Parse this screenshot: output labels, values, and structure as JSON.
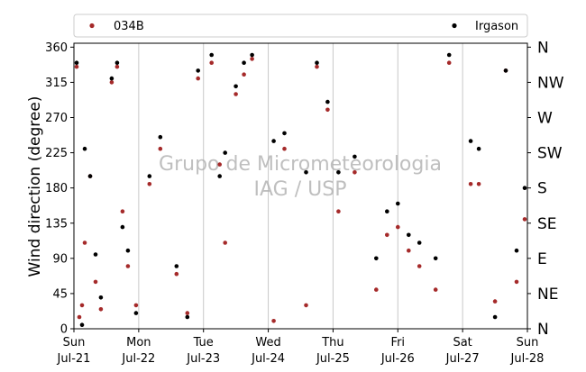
{
  "chart_data": {
    "type": "scatter",
    "ylabel": "Wind direction (degree)",
    "ylim": [
      0,
      365
    ],
    "yticks": [
      0,
      45,
      90,
      135,
      180,
      225,
      270,
      315,
      360
    ],
    "compass_ticks": [
      {
        "deg": 0,
        "label": "N"
      },
      {
        "deg": 45,
        "label": "NE"
      },
      {
        "deg": 90,
        "label": "E"
      },
      {
        "deg": 135,
        "label": "SE"
      },
      {
        "deg": 180,
        "label": "S"
      },
      {
        "deg": 225,
        "label": "SW"
      },
      {
        "deg": 270,
        "label": "W"
      },
      {
        "deg": 315,
        "label": "NW"
      },
      {
        "deg": 360,
        "label": "N"
      }
    ],
    "xlim": [
      "2019-07-21 00:00",
      "2019-07-28 00:00"
    ],
    "xticks": [
      {
        "day": "Sun",
        "date": "Jul-21"
      },
      {
        "day": "Mon",
        "date": "Jul-22"
      },
      {
        "day": "Tue",
        "date": "Jul-23"
      },
      {
        "day": "Wed",
        "date": "Jul-24"
      },
      {
        "day": "Thu",
        "date": "Jul-25"
      },
      {
        "day": "Fri",
        "date": "Jul-26"
      },
      {
        "day": "Sat",
        "date": "Jul-27"
      },
      {
        "day": "Sun",
        "date": "Jul-28"
      }
    ],
    "grid": "x",
    "legend": "top",
    "watermark": [
      "Grupo de Micrometeorologia",
      "IAG / USP"
    ],
    "series": [
      {
        "name": "034B",
        "color": "#a52a2a",
        "points": [
          [
            "2019-07-21 01:00",
            335
          ],
          [
            "2019-07-21 02:00",
            15
          ],
          [
            "2019-07-21 03:00",
            30
          ],
          [
            "2019-07-21 04:00",
            110
          ],
          [
            "2019-07-21 06:00",
            195
          ],
          [
            "2019-07-21 08:00",
            60
          ],
          [
            "2019-07-21 10:00",
            25
          ],
          [
            "2019-07-21 14:00",
            315
          ],
          [
            "2019-07-21 16:00",
            335
          ],
          [
            "2019-07-21 18:00",
            150
          ],
          [
            "2019-07-21 20:00",
            80
          ],
          [
            "2019-07-21 23:00",
            30
          ],
          [
            "2019-07-22 04:00",
            185
          ],
          [
            "2019-07-22 08:00",
            230
          ],
          [
            "2019-07-22 14:00",
            70
          ],
          [
            "2019-07-22 18:00",
            20
          ],
          [
            "2019-07-22 22:00",
            320
          ],
          [
            "2019-07-23 03:00",
            340
          ],
          [
            "2019-07-23 06:00",
            210
          ],
          [
            "2019-07-23 08:00",
            110
          ],
          [
            "2019-07-23 12:00",
            300
          ],
          [
            "2019-07-23 15:00",
            325
          ],
          [
            "2019-07-23 18:00",
            345
          ],
          [
            "2019-07-24 02:00",
            10
          ],
          [
            "2019-07-24 06:00",
            230
          ],
          [
            "2019-07-24 14:00",
            30
          ],
          [
            "2019-07-24 18:00",
            335
          ],
          [
            "2019-07-24 22:00",
            280
          ],
          [
            "2019-07-25 02:00",
            150
          ],
          [
            "2019-07-25 08:00",
            200
          ],
          [
            "2019-07-25 16:00",
            50
          ],
          [
            "2019-07-25 20:00",
            120
          ],
          [
            "2019-07-26 00:00",
            130
          ],
          [
            "2019-07-26 04:00",
            100
          ],
          [
            "2019-07-26 08:00",
            80
          ],
          [
            "2019-07-26 14:00",
            50
          ],
          [
            "2019-07-26 19:00",
            340
          ],
          [
            "2019-07-27 03:00",
            185
          ],
          [
            "2019-07-27 06:00",
            185
          ],
          [
            "2019-07-27 12:00",
            35
          ],
          [
            "2019-07-27 16:00",
            330
          ],
          [
            "2019-07-27 20:00",
            60
          ],
          [
            "2019-07-27 23:00",
            140
          ]
        ]
      },
      {
        "name": "Irgason",
        "color": "#000000",
        "points": [
          [
            "2019-07-21 01:00",
            340
          ],
          [
            "2019-07-21 03:00",
            5
          ],
          [
            "2019-07-21 04:00",
            230
          ],
          [
            "2019-07-21 06:00",
            195
          ],
          [
            "2019-07-21 08:00",
            95
          ],
          [
            "2019-07-21 10:00",
            40
          ],
          [
            "2019-07-21 14:00",
            320
          ],
          [
            "2019-07-21 16:00",
            340
          ],
          [
            "2019-07-21 18:00",
            130
          ],
          [
            "2019-07-21 20:00",
            100
          ],
          [
            "2019-07-21 23:00",
            20
          ],
          [
            "2019-07-22 04:00",
            195
          ],
          [
            "2019-07-22 08:00",
            245
          ],
          [
            "2019-07-22 14:00",
            80
          ],
          [
            "2019-07-22 18:00",
            15
          ],
          [
            "2019-07-22 22:00",
            330
          ],
          [
            "2019-07-23 03:00",
            350
          ],
          [
            "2019-07-23 06:00",
            195
          ],
          [
            "2019-07-23 08:00",
            225
          ],
          [
            "2019-07-23 12:00",
            310
          ],
          [
            "2019-07-23 15:00",
            340
          ],
          [
            "2019-07-23 18:00",
            350
          ],
          [
            "2019-07-24 02:00",
            240
          ],
          [
            "2019-07-24 06:00",
            250
          ],
          [
            "2019-07-24 14:00",
            200
          ],
          [
            "2019-07-24 18:00",
            340
          ],
          [
            "2019-07-24 22:00",
            290
          ],
          [
            "2019-07-25 02:00",
            200
          ],
          [
            "2019-07-25 08:00",
            220
          ],
          [
            "2019-07-25 16:00",
            90
          ],
          [
            "2019-07-25 20:00",
            150
          ],
          [
            "2019-07-26 00:00",
            160
          ],
          [
            "2019-07-26 04:00",
            120
          ],
          [
            "2019-07-26 08:00",
            110
          ],
          [
            "2019-07-26 14:00",
            90
          ],
          [
            "2019-07-26 19:00",
            350
          ],
          [
            "2019-07-27 03:00",
            240
          ],
          [
            "2019-07-27 06:00",
            230
          ],
          [
            "2019-07-27 12:00",
            15
          ],
          [
            "2019-07-27 16:00",
            330
          ],
          [
            "2019-07-27 20:00",
            100
          ],
          [
            "2019-07-27 23:00",
            180
          ]
        ]
      }
    ]
  }
}
